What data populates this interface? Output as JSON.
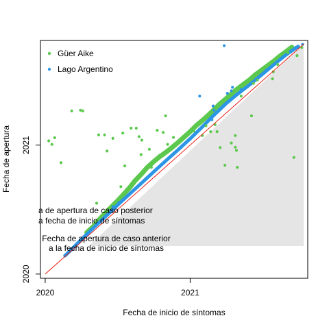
{
  "chart_data": {
    "type": "scatter",
    "title": "",
    "xlabel": "Fecha de inicio de síntomas",
    "ylabel": "Fecha de apertura",
    "xlim": [
      "2019-12-20",
      "2021-10-25"
    ],
    "ylim": [
      "2019-12-20",
      "2021-10-25"
    ],
    "x_ticks": [
      {
        "value": "2020-01-01",
        "label": "2020"
      },
      {
        "value": "2021-01-01",
        "label": "2021"
      }
    ],
    "y_ticks": [
      {
        "value": "2020-01-01",
        "label": "2020"
      },
      {
        "value": "2021-01-01",
        "label": "2021"
      }
    ],
    "grid": false,
    "legend_position": "top-left",
    "region_note_upper": [
      "a de apertura de caso posterior",
      "a fecha de inicio de síntomas"
    ],
    "region_note_lower": [
      "Fecha de apertura de caso anterior",
      "a la fecha de inicio de síntomas"
    ],
    "shaded_region_color": "#e5e5e5",
    "identity_line_color": "#e8190e",
    "identity_line": {
      "from": "2020-01-01",
      "to": "2021-10-15"
    },
    "series": [
      {
        "name": "Güer Aike",
        "color": "#5cc84d",
        "points": [
          [
            "2020-01-10",
            "2021-01-13"
          ],
          [
            "2020-01-18",
            "2021-01-03"
          ],
          [
            "2020-01-25",
            "2021-01-22"
          ],
          [
            "2020-02-10",
            "2020-11-12"
          ],
          [
            "2020-03-30",
            "2021-04-10"
          ],
          [
            "2020-03-08",
            "2021-04-08"
          ],
          [
            "2020-04-05",
            "2021-04-08"
          ],
          [
            "2020-05-15",
            "2021-01-30"
          ],
          [
            "2020-05-30",
            "2021-01-30"
          ],
          [
            "2020-06-05",
            "2020-12-15"
          ],
          [
            "2020-07-15",
            "2021-02-04"
          ],
          [
            "2020-08-05",
            "2021-02-18"
          ],
          [
            "2020-08-18",
            "2021-02-18"
          ],
          [
            "2020-08-25",
            "2021-01-25"
          ],
          [
            "2020-10-10",
            "2021-02-12"
          ],
          [
            "2020-09-25",
            "2020-10-30"
          ],
          [
            "2020-10-25",
            "2021-02-06"
          ],
          [
            "2020-10-31",
            "2021-03-25"
          ],
          [
            "2020-11-20",
            "2021-01-23"
          ],
          [
            "2021-02-22",
            "2021-02-08"
          ],
          [
            "2021-03-10",
            "2021-02-08"
          ],
          [
            "2021-04-25",
            "2021-01-28"
          ],
          [
            "2021-04-15",
            "2021-01-07"
          ],
          [
            "2021-04-25",
            "2020-12-26"
          ],
          [
            "2021-04-28",
            "2020-12-17"
          ],
          [
            "2021-03-30",
            "2020-11-05"
          ],
          [
            "2021-04-30",
            "2020-10-30"
          ],
          [
            "2021-06-05",
            "2021-03-25"
          ],
          [
            "2021-07-28",
            "2021-07-08"
          ],
          [
            "2021-07-30",
            "2021-07-28"
          ],
          [
            "2021-09-20",
            "2020-11-27"
          ],
          [
            "2021-10-10",
            "2021-10-05"
          ],
          [
            "2021-09-28",
            "2021-09-12"
          ],
          [
            "2021-06-10",
            "2021-06-25"
          ],
          [
            "2020-07-10",
            "2020-09-05"
          ],
          [
            "2021-02-01",
            "2021-01-28"
          ],
          [
            "2021-03-18",
            "2020-12-25"
          ],
          [
            "2021-03-05",
            "2021-02-28"
          ],
          [
            "2020-06-20",
            "2021-01-20"
          ],
          [
            "2020-05-10",
            "2020-07-20"
          ],
          [
            "2020-07-20",
            "2020-11-03"
          ],
          [
            "2020-08-30",
            "2020-12-05"
          ],
          [
            "2020-09-01",
            "2021-01-15"
          ],
          [
            "2020-09-20",
            "2020-12-20"
          ],
          [
            "2020-10-15",
            "2020-12-02"
          ],
          [
            "2020-11-05",
            "2021-01-03"
          ],
          [
            "2020-12-15",
            "2021-01-25"
          ],
          [
            "2021-01-10",
            "2021-02-10"
          ],
          [
            "2021-01-20",
            "2021-03-05"
          ],
          [
            "2021-02-10",
            "2021-02-25"
          ],
          [
            "2021-05-10",
            "2021-05-20"
          ],
          [
            "2021-06-20",
            "2021-07-05"
          ],
          [
            "2021-08-10",
            "2021-08-18"
          ],
          [
            "2021-09-05",
            "2021-09-20"
          ]
        ],
        "band": [
          [
            "2020-04-15",
            "2020-04-28"
          ],
          [
            "2020-05-01",
            "2020-05-14"
          ],
          [
            "2020-05-15",
            "2020-06-02"
          ],
          [
            "2020-06-01",
            "2020-06-22"
          ],
          [
            "2020-06-15",
            "2020-07-08"
          ],
          [
            "2020-07-01",
            "2020-07-26"
          ],
          [
            "2020-07-15",
            "2020-08-12"
          ],
          [
            "2020-08-01",
            "2020-09-02"
          ],
          [
            "2020-08-15",
            "2020-09-22"
          ],
          [
            "2020-09-01",
            "2020-10-12"
          ],
          [
            "2020-09-15",
            "2020-10-30"
          ],
          [
            "2020-10-01",
            "2020-11-15"
          ],
          [
            "2020-10-15",
            "2020-11-28"
          ],
          [
            "2020-11-01",
            "2020-12-12"
          ],
          [
            "2020-11-15",
            "2020-12-24"
          ],
          [
            "2020-12-01",
            "2021-01-08"
          ],
          [
            "2020-12-15",
            "2021-01-22"
          ],
          [
            "2021-01-01",
            "2021-02-08"
          ],
          [
            "2021-01-15",
            "2021-02-24"
          ],
          [
            "2021-02-01",
            "2021-03-12"
          ],
          [
            "2021-02-15",
            "2021-03-26"
          ],
          [
            "2021-03-01",
            "2021-04-10"
          ],
          [
            "2021-03-15",
            "2021-04-26"
          ],
          [
            "2021-04-01",
            "2021-05-12"
          ],
          [
            "2021-04-15",
            "2021-05-26"
          ],
          [
            "2021-05-01",
            "2021-06-10"
          ],
          [
            "2021-05-15",
            "2021-06-22"
          ],
          [
            "2021-06-01",
            "2021-07-06"
          ],
          [
            "2021-06-15",
            "2021-07-20"
          ],
          [
            "2021-07-01",
            "2021-08-02"
          ],
          [
            "2021-07-15",
            "2021-08-14"
          ],
          [
            "2021-08-01",
            "2021-08-28"
          ],
          [
            "2021-08-15",
            "2021-09-10"
          ],
          [
            "2021-09-01",
            "2021-09-24"
          ],
          [
            "2021-09-15",
            "2021-10-06"
          ]
        ]
      },
      {
        "name": "Lago Argentino",
        "color": "#2d95e5",
        "points": [
          [
            "2021-03-28",
            "2021-10-10"
          ],
          [
            "2021-01-25",
            "2021-05-20"
          ],
          [
            "2021-02-25",
            "2021-03-14"
          ],
          [
            "2021-04-05",
            "2021-05-28"
          ],
          [
            "2021-05-10",
            "2021-06-08"
          ],
          [
            "2021-05-20",
            "2021-06-12"
          ],
          [
            "2021-03-02",
            "2021-04-10"
          ],
          [
            "2020-06-20",
            "2020-07-10"
          ],
          [
            "2020-07-05",
            "2020-07-22"
          ],
          [
            "2020-03-01",
            "2020-03-05"
          ],
          [
            "2020-03-15",
            "2020-03-20"
          ],
          [
            "2021-04-15",
            "2021-06-04"
          ],
          [
            "2021-04-18",
            "2021-06-14"
          ],
          [
            "2021-02-28",
            "2021-04-22"
          ],
          [
            "2021-09-25",
            "2021-10-06"
          ],
          [
            "2021-10-12",
            "2021-10-14"
          ],
          [
            "2021-07-12",
            "2021-08-02"
          ],
          [
            "2021-08-25",
            "2021-09-10"
          ]
        ],
        "band": [
          [
            "2020-02-20",
            "2020-02-22"
          ],
          [
            "2020-03-05",
            "2020-03-08"
          ],
          [
            "2020-04-01",
            "2020-04-08"
          ],
          [
            "2020-05-01",
            "2020-05-10"
          ],
          [
            "2020-06-01",
            "2020-06-12"
          ],
          [
            "2020-07-01",
            "2020-07-14"
          ],
          [
            "2020-08-01",
            "2020-08-15"
          ],
          [
            "2020-09-01",
            "2020-09-16"
          ],
          [
            "2020-10-01",
            "2020-10-17"
          ],
          [
            "2020-11-01",
            "2020-11-18"
          ],
          [
            "2020-12-01",
            "2020-12-18"
          ],
          [
            "2021-01-01",
            "2021-01-19"
          ],
          [
            "2021-02-01",
            "2021-02-22"
          ],
          [
            "2021-03-01",
            "2021-03-26"
          ],
          [
            "2021-04-01",
            "2021-04-28"
          ],
          [
            "2021-05-01",
            "2021-05-26"
          ],
          [
            "2021-06-01",
            "2021-06-22"
          ],
          [
            "2021-07-01",
            "2021-07-20"
          ],
          [
            "2021-08-01",
            "2021-08-18"
          ],
          [
            "2021-09-01",
            "2021-09-15"
          ],
          [
            "2021-10-01",
            "2021-10-08"
          ]
        ]
      }
    ]
  }
}
